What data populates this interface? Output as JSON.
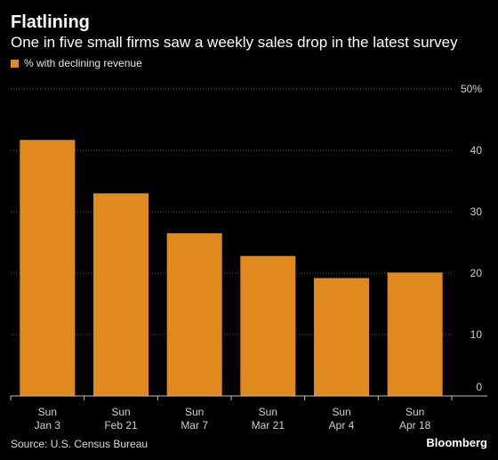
{
  "colors": {
    "background": "#000000",
    "bar": "#e0891f",
    "grid": "#5a5a5a",
    "text": "#ffffff",
    "muted": "#cfcfcf"
  },
  "header": {
    "title": "Flatlining",
    "subtitle": "One in five small firms saw a weekly sales drop in the latest survey"
  },
  "legend": {
    "label": "% with declining revenue"
  },
  "footer": {
    "source": "Source: U.S. Census Bureau",
    "brand": "Bloomberg"
  },
  "chart_data": {
    "type": "bar",
    "categories": [
      [
        "Sun",
        "Jan 3"
      ],
      [
        "Sun",
        "Feb 21"
      ],
      [
        "Sun",
        "Mar 7"
      ],
      [
        "Sun",
        "Mar 21"
      ],
      [
        "Sun",
        "Apr 4"
      ],
      [
        "Sun",
        "Apr 18"
      ]
    ],
    "series": [
      {
        "name": "% with declining revenue",
        "values": [
          41.7,
          33.0,
          26.5,
          22.8,
          19.2,
          20.1
        ]
      }
    ],
    "ylim": [
      0,
      50
    ],
    "yticks": [
      0,
      10,
      20,
      30,
      40,
      50
    ],
    "ytick_labels": [
      "0",
      "10",
      "20",
      "30",
      "40",
      "50%"
    ],
    "y_axis_side": "right",
    "grid": true,
    "legend_position": "top-left"
  }
}
